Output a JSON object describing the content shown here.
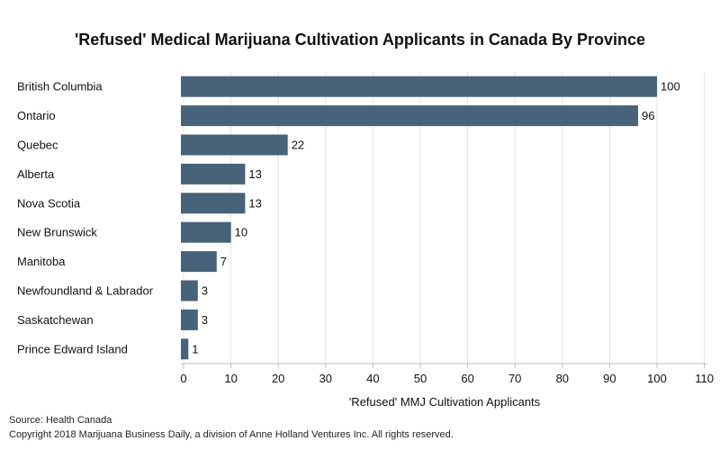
{
  "chart_data": {
    "type": "bar",
    "orientation": "horizontal",
    "title": "'Refused' Medical Marijuana Cultivation Applicants in Canada By Province",
    "xlabel": "'Refused' MMJ Cultivation Applicants",
    "ylabel": "",
    "categories": [
      "British Columbia",
      "Ontario",
      "Quebec",
      "Alberta",
      "Nova Scotia",
      "New Brunswick",
      "Manitoba",
      "Newfoundland &  Labrador",
      "Saskatchewan",
      "Prince Edward Island"
    ],
    "values": [
      100,
      96,
      22,
      13,
      13,
      10,
      7,
      3,
      3,
      1
    ],
    "xlim": [
      0,
      110
    ],
    "xticks": [
      0,
      10,
      20,
      30,
      40,
      50,
      60,
      70,
      80,
      90,
      100,
      110
    ],
    "grid": true,
    "legend": "none",
    "data_labels": true,
    "colors": {
      "bar": "#476379",
      "grid": "#e3e3e3",
      "axis": "#bdbdbd",
      "text": "#111111"
    }
  },
  "footer": {
    "source": "Source: Health Canada",
    "copyright": "Copyright 2018 Marijuana Business Daily, a division of Anne Holland Ventures Inc. All rights reserved."
  }
}
